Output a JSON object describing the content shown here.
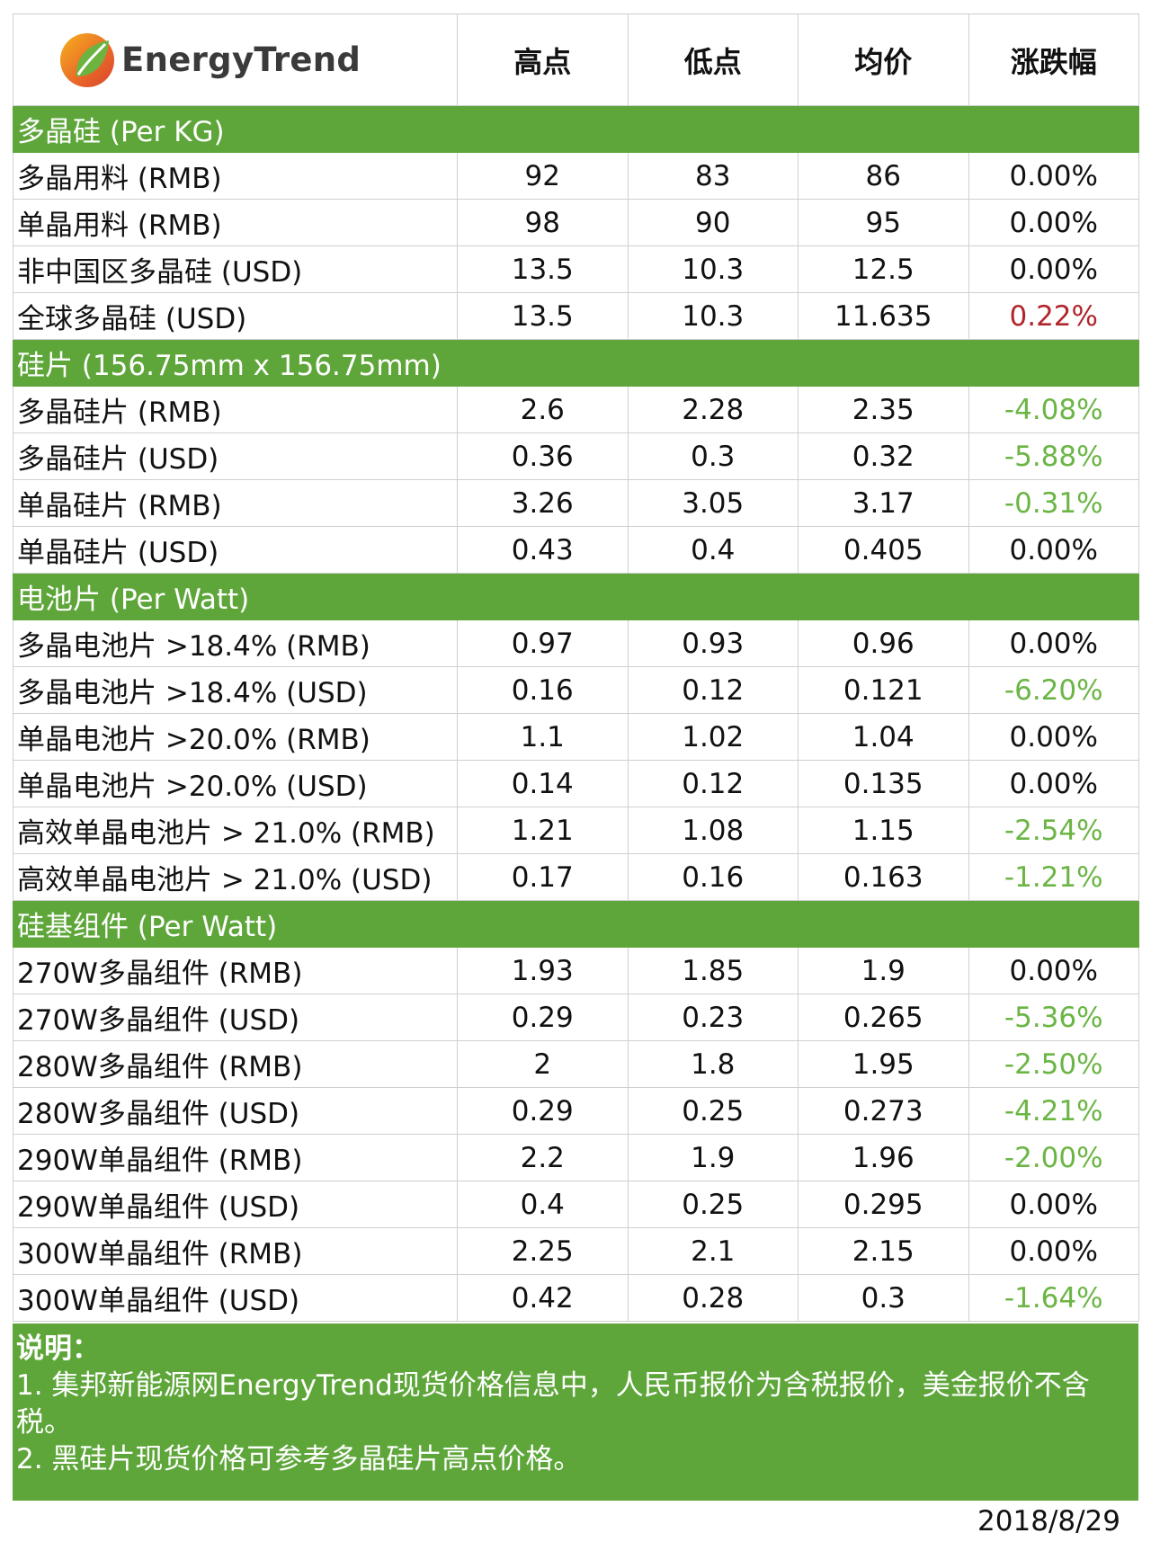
{
  "brand": {
    "name": "EnergyTrend",
    "logo_colors": [
      "#f39a1e",
      "#e5542a",
      "#6db33f"
    ]
  },
  "header": {
    "columns": [
      "高点",
      "低点",
      "均价",
      "涨跌幅"
    ]
  },
  "colors": {
    "section_bg": "#5ea63a",
    "positive": "#b1262c",
    "negative": "#6bb545"
  },
  "sections": [
    {
      "title": "多晶硅 (Per KG)",
      "rows": [
        {
          "name": "多晶用料 (RMB)",
          "high": "92",
          "low": "83",
          "avg": "86",
          "change": "0.00%",
          "trend": "flat"
        },
        {
          "name": "单晶用料 (RMB)",
          "high": "98",
          "low": "90",
          "avg": "95",
          "change": "0.00%",
          "trend": "flat"
        },
        {
          "name": "非中国区多晶硅 (USD)",
          "high": "13.5",
          "low": "10.3",
          "avg": "12.5",
          "change": "0.00%",
          "trend": "flat"
        },
        {
          "name": "全球多晶硅 (USD)",
          "high": "13.5",
          "low": "10.3",
          "avg": "11.635",
          "change": "0.22%",
          "trend": "up"
        }
      ]
    },
    {
      "title": "硅片 (156.75mm x 156.75mm)",
      "rows": [
        {
          "name": "多晶硅片 (RMB)",
          "high": "2.6",
          "low": "2.28",
          "avg": "2.35",
          "change": "-4.08%",
          "trend": "down"
        },
        {
          "name": "多晶硅片 (USD)",
          "high": "0.36",
          "low": "0.3",
          "avg": "0.32",
          "change": "-5.88%",
          "trend": "down"
        },
        {
          "name": "单晶硅片 (RMB)",
          "high": "3.26",
          "low": "3.05",
          "avg": "3.17",
          "change": "-0.31%",
          "trend": "down"
        },
        {
          "name": "单晶硅片 (USD)",
          "high": "0.43",
          "low": "0.4",
          "avg": "0.405",
          "change": "0.00%",
          "trend": "flat"
        }
      ]
    },
    {
      "title": "电池片 (Per Watt)",
      "rows": [
        {
          "name": "多晶电池片  >18.4% (RMB)",
          "high": "0.97",
          "low": "0.93",
          "avg": "0.96",
          "change": "0.00%",
          "trend": "flat"
        },
        {
          "name": "多晶电池片  >18.4% (USD)",
          "high": "0.16",
          "low": "0.12",
          "avg": "0.121",
          "change": "-6.20%",
          "trend": "down"
        },
        {
          "name": "单晶电池片 >20.0% (RMB)",
          "high": "1.1",
          "low": "1.02",
          "avg": "1.04",
          "change": "0.00%",
          "trend": "flat"
        },
        {
          "name": "单晶电池片 >20.0% (USD)",
          "high": "0.14",
          "low": "0.12",
          "avg": "0.135",
          "change": "0.00%",
          "trend": "flat"
        },
        {
          "name": "高效单晶电池片 > 21.0% (RMB)",
          "high": "1.21",
          "low": "1.08",
          "avg": "1.15",
          "change": "-2.54%",
          "trend": "down"
        },
        {
          "name": "高效单晶电池片 > 21.0% (USD)",
          "high": "0.17",
          "low": "0.16",
          "avg": "0.163",
          "change": "-1.21%",
          "trend": "down"
        }
      ]
    },
    {
      "title": "硅基组件 (Per Watt)",
      "rows": [
        {
          "name": "270W多晶组件 (RMB)",
          "high": "1.93",
          "low": "1.85",
          "avg": "1.9",
          "change": "0.00%",
          "trend": "flat"
        },
        {
          "name": "270W多晶组件 (USD)",
          "high": "0.29",
          "low": "0.23",
          "avg": "0.265",
          "change": "-5.36%",
          "trend": "down"
        },
        {
          "name": "280W多晶组件 (RMB)",
          "high": "2",
          "low": "1.8",
          "avg": "1.95",
          "change": "-2.50%",
          "trend": "down"
        },
        {
          "name": "280W多晶组件 (USD)",
          "high": "0.29",
          "low": "0.25",
          "avg": "0.273",
          "change": "-4.21%",
          "trend": "down"
        },
        {
          "name": "290W单晶组件 (RMB)",
          "high": "2.2",
          "low": "1.9",
          "avg": "1.96",
          "change": "-2.00%",
          "trend": "down"
        },
        {
          "name": "290W单晶组件 (USD)",
          "high": "0.4",
          "low": "0.25",
          "avg": "0.295",
          "change": "0.00%",
          "trend": "flat"
        },
        {
          "name": "300W单晶组件 (RMB)",
          "high": "2.25",
          "low": "2.1",
          "avg": "2.15",
          "change": "0.00%",
          "trend": "flat"
        },
        {
          "name": "300W单晶组件 (USD)",
          "high": "0.42",
          "low": "0.28",
          "avg": "0.3",
          "change": "-1.64%",
          "trend": "down"
        }
      ]
    }
  ],
  "notes": {
    "title": "说明：",
    "lines": [
      "1. 集邦新能源网EnergyTrend现货价格信息中，人民币报价为含税报价，美金报价不含税。",
      "2. 黑硅片现货价格可参考多晶硅片高点价格。"
    ]
  },
  "date": "2018/8/29"
}
